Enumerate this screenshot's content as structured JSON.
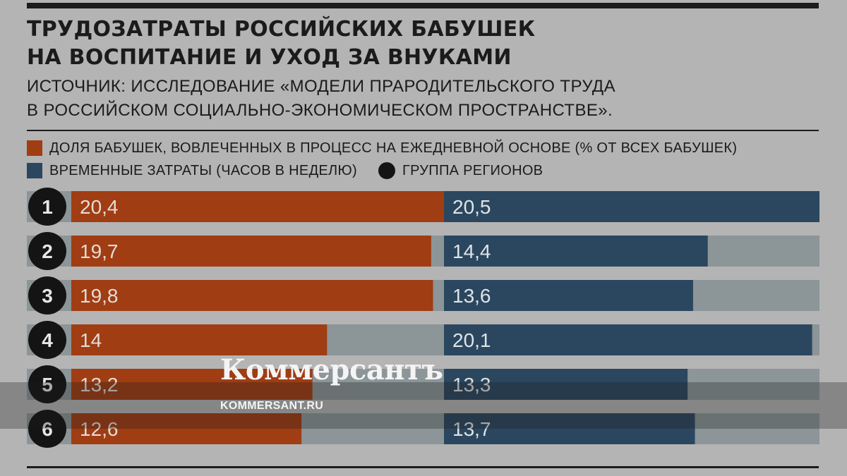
{
  "title_line1": "ТРУДОЗАТРАТЫ РОССИЙСКИХ БАБУШЕК",
  "title_line2": "НА ВОСПИТАНИЕ И УХОД ЗА ВНУКАМИ",
  "source_line1": "ИСТОЧНИК:  ИССЛЕДОВАНИЕ «МОДЕЛИ ПРАРОДИТЕЛЬСКОГО ТРУДА",
  "source_line2": "В РОССИЙСКОМ СОЦИАЛЬНО-ЭКОНОМИЧЕСКОМ ПРОСТРАНСТВЕ».",
  "legend": {
    "share": "ДОЛЯ БАБУШЕК, ВОВЛЕЧЕННЫХ В ПРОЦЕСС НА ЕЖЕДНЕВНОЙ ОСНОВЕ (% ОТ ВСЕХ БАБУШЕК)",
    "hours": "ВРЕМЕННЫЕ ЗАТРАТЫ (ЧАСОВ В НЕДЕЛЮ)",
    "group": "ГРУППА РЕГИОНОВ"
  },
  "colors": {
    "background": "#b4b4b4",
    "share": "#a03d13",
    "hours": "#2b475f",
    "track": "#8c9598",
    "marker": "#141414"
  },
  "chart_data": {
    "type": "bar",
    "categories": [
      "1",
      "2",
      "3",
      "4",
      "5",
      "6"
    ],
    "series": [
      {
        "name": "ДОЛЯ БАБУШЕК, ВОВЛЕЧЕННЫХ В ПРОЦЕСС НА ЕЖЕДНЕВНОЙ ОСНОВЕ (% ОТ ВСЕХ БАБУШЕК)",
        "values": [
          20.4,
          19.7,
          19.8,
          14,
          13.2,
          12.6
        ],
        "labels": [
          "20,4",
          "19,7",
          "19,8",
          "14",
          "13,2",
          "12,6"
        ],
        "max": 20.4
      },
      {
        "name": "ВРЕМЕННЫЕ ЗАТРАТЫ (ЧАСОВ В НЕДЕЛЮ)",
        "values": [
          20.5,
          14.4,
          13.6,
          20.1,
          13.3,
          13.7
        ],
        "labels": [
          "20,5",
          "14,4",
          "13,6",
          "20,1",
          "13,3",
          "13,7"
        ],
        "max": 20.5
      }
    ]
  },
  "watermark": {
    "logo": "Коммерсантъ",
    "url": "KOMMERSANT.RU"
  }
}
